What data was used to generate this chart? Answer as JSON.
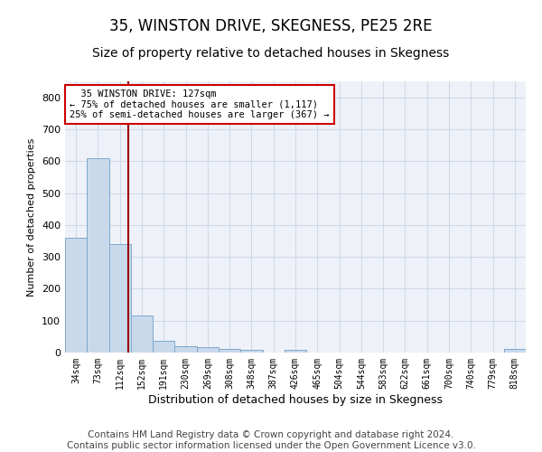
{
  "title": "35, WINSTON DRIVE, SKEGNESS, PE25 2RE",
  "subtitle": "Size of property relative to detached houses in Skegness",
  "xlabel": "Distribution of detached houses by size in Skegness",
  "ylabel": "Number of detached properties",
  "categories": [
    "34sqm",
    "73sqm",
    "112sqm",
    "152sqm",
    "191sqm",
    "230sqm",
    "269sqm",
    "308sqm",
    "348sqm",
    "387sqm",
    "426sqm",
    "465sqm",
    "504sqm",
    "544sqm",
    "583sqm",
    "622sqm",
    "661sqm",
    "700sqm",
    "740sqm",
    "779sqm",
    "818sqm"
  ],
  "values": [
    360,
    610,
    340,
    115,
    37,
    20,
    18,
    10,
    8,
    0,
    8,
    0,
    0,
    0,
    0,
    0,
    0,
    0,
    0,
    0,
    10
  ],
  "bar_color": "#c9d9ec",
  "bar_edge_color": "#7fa8cc",
  "vline_color": "#990000",
  "annotation_text": "  35 WINSTON DRIVE: 127sqm\n← 75% of detached houses are smaller (1,117)\n25% of semi-detached houses are larger (367) →",
  "annotation_box_color": "#ffffff",
  "annotation_box_edge_color": "#cc0000",
  "ylim": [
    0,
    850
  ],
  "yticks": [
    0,
    100,
    200,
    300,
    400,
    500,
    600,
    700,
    800
  ],
  "grid_color": "#d0d8e8",
  "bg_color": "#eef2f8",
  "footer_line1": "Contains HM Land Registry data © Crown copyright and database right 2024.",
  "footer_line2": "Contains public sector information licensed under the Open Government Licence v3.0.",
  "title_fontsize": 12,
  "subtitle_fontsize": 10,
  "footer_fontsize": 7.5
}
